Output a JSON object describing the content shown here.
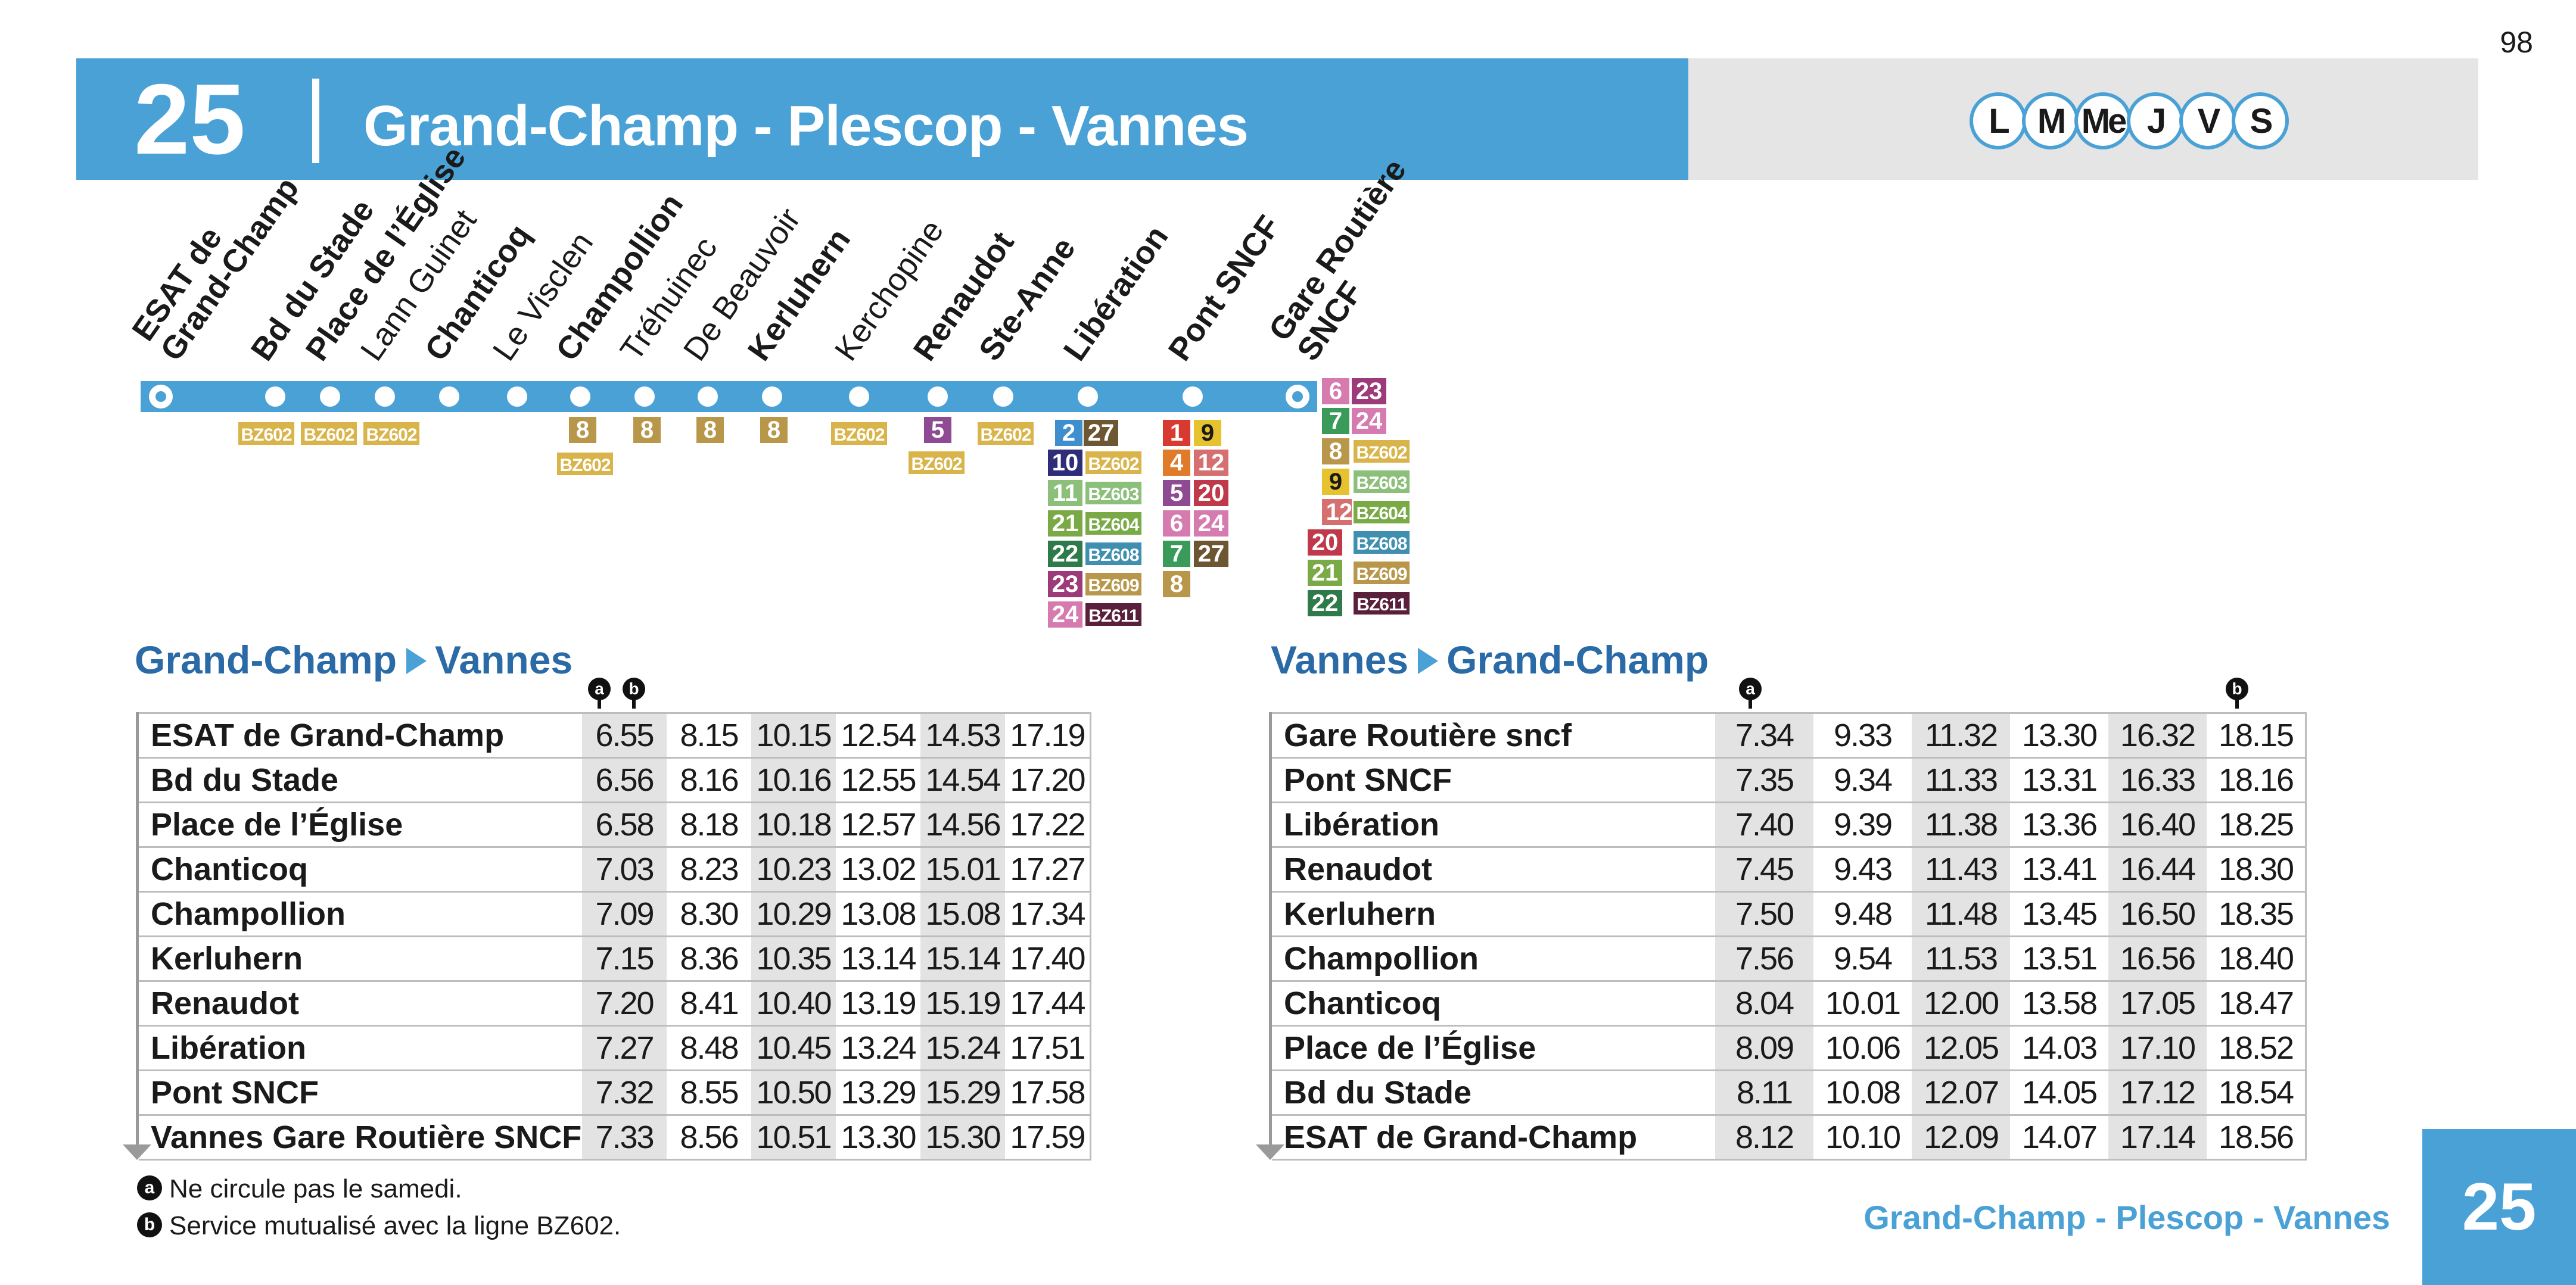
{
  "page_number": "98",
  "header": {
    "line_number": "25",
    "line_title": "Grand-Champ - Plescop - Vannes",
    "days": [
      "L",
      "M",
      "Me",
      "J",
      "V",
      "S"
    ],
    "brand_color": "#4aa1d6"
  },
  "route": {
    "stops": [
      {
        "name": "ESAT de\nGrand-Champ",
        "major": true
      },
      {
        "name": "Bd du Stade",
        "major": true
      },
      {
        "name": "Place de l’Église",
        "major": true
      },
      {
        "name": "Lann Guinet",
        "major": false
      },
      {
        "name": "Chanticoq",
        "major": true
      },
      {
        "name": "Le Visclen",
        "major": false
      },
      {
        "name": "Champollion",
        "major": true
      },
      {
        "name": "Tréhuinec",
        "major": false
      },
      {
        "name": "De Beauvoir",
        "major": false
      },
      {
        "name": "Kerluhern",
        "major": true
      },
      {
        "name": "Kerchopine",
        "major": false
      },
      {
        "name": "Renaudot",
        "major": true
      },
      {
        "name": "Ste-Anne",
        "major": true
      },
      {
        "name": "Libération",
        "major": true
      },
      {
        "name": "Pont SNCF",
        "major": true
      },
      {
        "name": "Gare Routière\nSNCF",
        "major": true
      }
    ],
    "connections": [
      {
        "label": "BZ602",
        "color": "#d9b44a"
      },
      {
        "label": "BZ602",
        "color": "#d9b44a"
      },
      {
        "label": "BZ602",
        "color": "#d9b44a"
      },
      {
        "label": "8",
        "color": "#b8974a"
      },
      {
        "label": "BZ602",
        "color": "#d9b44a"
      },
      {
        "label": "8",
        "color": "#b8974a"
      },
      {
        "label": "8",
        "color": "#b8974a"
      },
      {
        "label": "8",
        "color": "#b8974a"
      },
      {
        "label": "BZ602",
        "color": "#d9b44a"
      },
      {
        "label": "5",
        "color": "#8e4a93"
      },
      {
        "label": "BZ602",
        "color": "#d9b44a"
      },
      {
        "label": "BZ602",
        "color": "#d9b44a"
      },
      {
        "label": "2",
        "color": "#3f8fcf"
      },
      {
        "label": "27",
        "color": "#6d5732"
      },
      {
        "label": "10",
        "color": "#2d2d7a"
      },
      {
        "label": "BZ602",
        "color": "#d9b44a"
      },
      {
        "label": "11",
        "color": "#8cc07a"
      },
      {
        "label": "BZ603",
        "color": "#8cc07a"
      },
      {
        "label": "21",
        "color": "#7aaa46"
      },
      {
        "label": "BZ604",
        "color": "#7aaa46"
      },
      {
        "label": "22",
        "color": "#2e7a4a"
      },
      {
        "label": "BZ608",
        "color": "#3f8fb0"
      },
      {
        "label": "23",
        "color": "#9c3a7a"
      },
      {
        "label": "BZ609",
        "color": "#b8974a"
      },
      {
        "label": "24",
        "color": "#d67bb0"
      },
      {
        "label": "BZ611",
        "color": "#5a1f3a"
      },
      {
        "label": "1",
        "color": "#d93a2f"
      },
      {
        "label": "9",
        "color": "#e6c22e"
      },
      {
        "label": "4",
        "color": "#e07b2a"
      },
      {
        "label": "12",
        "color": "#d66f6f"
      },
      {
        "label": "5",
        "color": "#8e4a93"
      },
      {
        "label": "20",
        "color": "#c0394a"
      },
      {
        "label": "6",
        "color": "#d67bb0"
      },
      {
        "label": "24",
        "color": "#d67bb0"
      },
      {
        "label": "7",
        "color": "#3a9a5a"
      },
      {
        "label": "27",
        "color": "#6d5732"
      },
      {
        "label": "8",
        "color": "#b8974a"
      },
      {
        "label": "6",
        "color": "#d67bb0"
      },
      {
        "label": "23",
        "color": "#9c3a7a"
      },
      {
        "label": "7",
        "color": "#3a9a5a"
      },
      {
        "label": "24",
        "color": "#d67bb0"
      },
      {
        "label": "8",
        "color": "#b8974a"
      },
      {
        "label": "BZ602",
        "color": "#d9b44a"
      },
      {
        "label": "9",
        "color": "#e6c22e"
      },
      {
        "label": "BZ603",
        "color": "#8cc07a"
      },
      {
        "label": "12",
        "color": "#d66f6f"
      },
      {
        "label": "BZ604",
        "color": "#7aaa46"
      },
      {
        "label": "20",
        "color": "#c0394a"
      },
      {
        "label": "BZ608",
        "color": "#3f8fb0"
      },
      {
        "label": "21",
        "color": "#7aaa46"
      },
      {
        "label": "BZ609",
        "color": "#b8974a"
      },
      {
        "label": "22",
        "color": "#2e7a4a"
      },
      {
        "label": "BZ611",
        "color": "#5a1f3a"
      }
    ]
  },
  "outbound": {
    "title_from": "Grand-Champ",
    "title_to": "Vannes",
    "note_markers": [
      "a",
      "b"
    ],
    "rows": [
      {
        "stop": "ESAT de Grand-Champ",
        "times": [
          "6.55",
          "8.15",
          "10.15",
          "12.54",
          "14.53",
          "17.19"
        ]
      },
      {
        "stop": "Bd du Stade",
        "times": [
          "6.56",
          "8.16",
          "10.16",
          "12.55",
          "14.54",
          "17.20"
        ]
      },
      {
        "stop": "Place de l’Église",
        "times": [
          "6.58",
          "8.18",
          "10.18",
          "12.57",
          "14.56",
          "17.22"
        ]
      },
      {
        "stop": "Chanticoq",
        "times": [
          "7.03",
          "8.23",
          "10.23",
          "13.02",
          "15.01",
          "17.27"
        ]
      },
      {
        "stop": "Champollion",
        "times": [
          "7.09",
          "8.30",
          "10.29",
          "13.08",
          "15.08",
          "17.34"
        ]
      },
      {
        "stop": "Kerluhern",
        "times": [
          "7.15",
          "8.36",
          "10.35",
          "13.14",
          "15.14",
          "17.40"
        ]
      },
      {
        "stop": "Renaudot",
        "times": [
          "7.20",
          "8.41",
          "10.40",
          "13.19",
          "15.19",
          "17.44"
        ]
      },
      {
        "stop": "Libération",
        "times": [
          "7.27",
          "8.48",
          "10.45",
          "13.24",
          "15.24",
          "17.51"
        ]
      },
      {
        "stop": "Pont SNCF",
        "times": [
          "7.32",
          "8.55",
          "10.50",
          "13.29",
          "15.29",
          "17.58"
        ]
      },
      {
        "stop": "Vannes Gare Routière SNCF",
        "times": [
          "7.33",
          "8.56",
          "10.51",
          "13.30",
          "15.30",
          "17.59"
        ]
      }
    ]
  },
  "inbound": {
    "title_from": "Vannes",
    "title_to": "Grand-Champ",
    "note_markers": [
      "a",
      "b"
    ],
    "rows": [
      {
        "stop": "Gare Routière sncf",
        "times": [
          "7.34",
          "9.33",
          "11.32",
          "13.30",
          "16.32",
          "18.15"
        ]
      },
      {
        "stop": "Pont SNCF",
        "times": [
          "7.35",
          "9.34",
          "11.33",
          "13.31",
          "16.33",
          "18.16"
        ]
      },
      {
        "stop": "Libération",
        "times": [
          "7.40",
          "9.39",
          "11.38",
          "13.36",
          "16.40",
          "18.25"
        ]
      },
      {
        "stop": "Renaudot",
        "times": [
          "7.45",
          "9.43",
          "11.43",
          "13.41",
          "16.44",
          "18.30"
        ]
      },
      {
        "stop": "Kerluhern",
        "times": [
          "7.50",
          "9.48",
          "11.48",
          "13.45",
          "16.50",
          "18.35"
        ]
      },
      {
        "stop": "Champollion",
        "times": [
          "7.56",
          "9.54",
          "11.53",
          "13.51",
          "16.56",
          "18.40"
        ]
      },
      {
        "stop": "Chanticoq",
        "times": [
          "8.04",
          "10.01",
          "12.00",
          "13.58",
          "17.05",
          "18.47"
        ]
      },
      {
        "stop": "Place de l’Église",
        "times": [
          "8.09",
          "10.06",
          "12.05",
          "14.03",
          "17.10",
          "18.52"
        ]
      },
      {
        "stop": "Bd du Stade",
        "times": [
          "8.11",
          "10.08",
          "12.07",
          "14.05",
          "17.12",
          "18.54"
        ]
      },
      {
        "stop": "ESAT de Grand-Champ",
        "times": [
          "8.12",
          "10.10",
          "12.09",
          "14.07",
          "17.14",
          "18.56"
        ]
      }
    ]
  },
  "footnotes": [
    {
      "marker": "a",
      "text": "Ne circule pas le samedi."
    },
    {
      "marker": "b",
      "text": "Service mutualisé avec la ligne BZ602."
    }
  ],
  "footer": {
    "title": "Grand-Champ - Plescop - Vannes",
    "line_number": "25"
  }
}
